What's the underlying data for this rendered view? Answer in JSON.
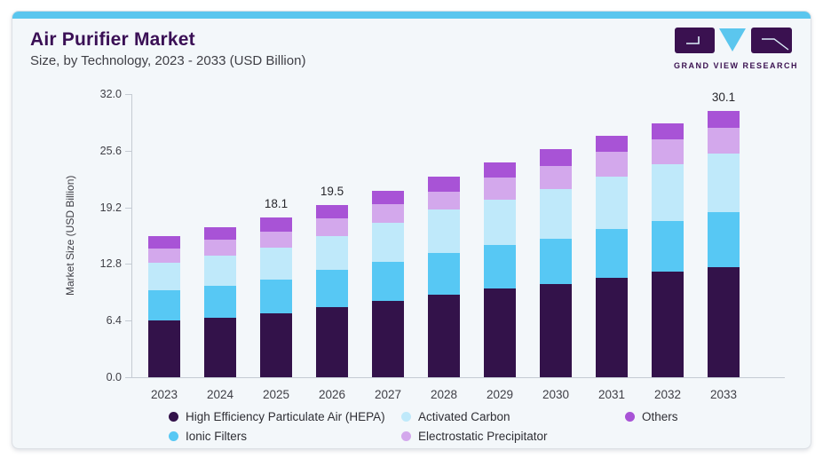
{
  "header": {
    "title": "Air Purifier Market",
    "subtitle": "Size, by Technology, 2023 - 2033 (USD Billion)"
  },
  "logo": {
    "text": "GRAND VIEW RESEARCH",
    "purple": "#3A1150",
    "cyan": "#5BC6EE"
  },
  "chart_data": {
    "type": "bar",
    "stacked": true,
    "title": "Air Purifier Market Size, by Technology, 2023 - 2033 (USD Billion)",
    "categories": [
      "2023",
      "2024",
      "2025",
      "2026",
      "2027",
      "2028",
      "2029",
      "2030",
      "2031",
      "2032",
      "2033"
    ],
    "series": [
      {
        "name": "High Efficiency Particulate Air (HEPA)",
        "color": "#33124A",
        "values": [
          6.4,
          6.7,
          7.2,
          7.9,
          8.6,
          9.3,
          10.0,
          10.5,
          11.2,
          11.9,
          12.4
        ]
      },
      {
        "name": "Ionic Filters",
        "color": "#57C8F4",
        "values": [
          3.4,
          3.6,
          3.8,
          4.2,
          4.4,
          4.7,
          4.9,
          5.2,
          5.6,
          5.8,
          6.3
        ]
      },
      {
        "name": "Activated Carbon",
        "color": "#BFE9FA",
        "values": [
          3.1,
          3.4,
          3.6,
          3.9,
          4.5,
          5.0,
          5.2,
          5.6,
          5.9,
          6.4,
          6.6
        ]
      },
      {
        "name": "Electrostatic Precipitator",
        "color": "#D3A8EC",
        "values": [
          1.6,
          1.9,
          1.9,
          2.0,
          2.1,
          2.0,
          2.5,
          2.6,
          2.8,
          2.8,
          2.9
        ]
      },
      {
        "name": "Others",
        "color": "#A853D6",
        "values": [
          1.5,
          1.4,
          1.6,
          1.5,
          1.5,
          1.7,
          1.7,
          1.9,
          1.8,
          1.8,
          1.9
        ]
      }
    ],
    "total_labels": {
      "2025": "18.1",
      "2026": "19.5",
      "2033": "30.1"
    },
    "ylabel": "Market Size (USD Billion)",
    "yticks": [
      0.0,
      6.4,
      12.8,
      19.2,
      25.6,
      32.0
    ],
    "ytick_labels": [
      "0.0",
      "6.4",
      "12.8",
      "19.2",
      "25.6",
      "32.0"
    ],
    "ylim": [
      0,
      32
    ],
    "grid": false,
    "legend_position": "bottom"
  },
  "legend": {
    "items": [
      {
        "label": "High Efficiency Particulate Air (HEPA)",
        "color": "#33124A"
      },
      {
        "label": "Activated Carbon",
        "color": "#BFE9FA"
      },
      {
        "label": "Others",
        "color": "#A853D6"
      },
      {
        "label": "Ionic Filters",
        "color": "#57C8F4"
      },
      {
        "label": "Electrostatic Precipitator",
        "color": "#D3A8EC"
      }
    ]
  }
}
